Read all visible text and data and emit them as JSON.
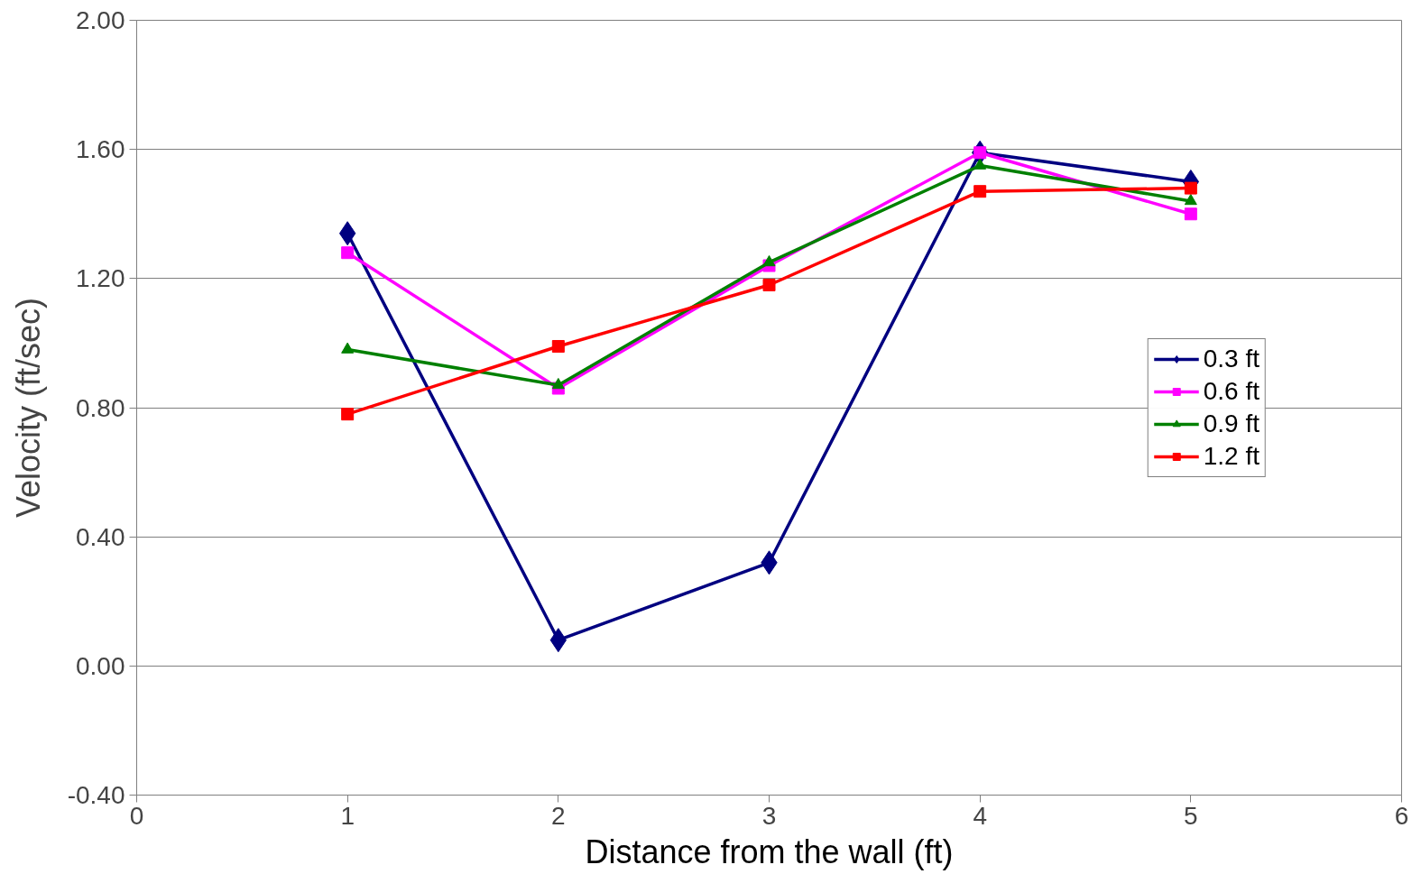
{
  "chart_data": {
    "type": "line",
    "xlabel": "Distance from the wall (ft)",
    "ylabel": "Velocity (ft/sec)",
    "x": [
      1,
      2,
      3,
      4,
      5
    ],
    "series": [
      {
        "name": "0.3 ft",
        "color": "#000080",
        "marker": "diamond",
        "values": [
          1.34,
          0.08,
          0.32,
          1.59,
          1.5
        ]
      },
      {
        "name": "0.6 ft",
        "color": "#ff00ff",
        "marker": "square",
        "values": [
          1.28,
          0.86,
          1.24,
          1.59,
          1.4
        ]
      },
      {
        "name": "0.9 ft",
        "color": "#008000",
        "marker": "triangle",
        "values": [
          0.98,
          0.87,
          1.25,
          1.55,
          1.44
        ]
      },
      {
        "name": "1.2 ft",
        "color": "#ff0000",
        "marker": "square",
        "values": [
          0.78,
          0.99,
          1.18,
          1.47,
          1.48
        ]
      }
    ],
    "xlim": [
      0,
      6
    ],
    "xticks": [
      0,
      1,
      2,
      3,
      4,
      5,
      6
    ],
    "ylim": [
      -0.4,
      2.0
    ],
    "yticks": [
      {
        "value": -0.4,
        "label": "-0.40"
      },
      {
        "value": 0,
        "label": "0.00"
      },
      {
        "value": 0.4,
        "label": "0.40"
      },
      {
        "value": 0.8,
        "label": "0.80"
      },
      {
        "value": 1.2,
        "label": "1.20"
      },
      {
        "value": 1.6,
        "label": "1.60"
      },
      {
        "value": 2.0,
        "label": "2.00"
      }
    ],
    "grid": "y",
    "legend": "right",
    "line_style": "solid"
  }
}
